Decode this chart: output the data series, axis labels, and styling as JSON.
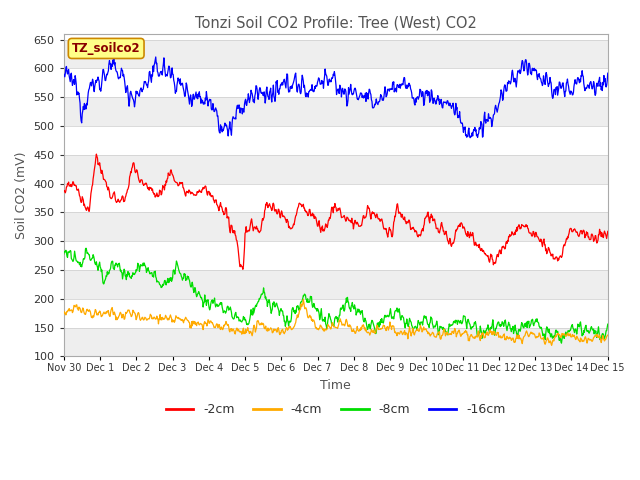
{
  "title": "Tonzi Soil CO2 Profile: Tree (West) CO2",
  "ylabel": "Soil CO2 (mV)",
  "xlabel": "Time",
  "legend_label": "TZ_soilco2",
  "ylim": [
    100,
    660
  ],
  "yticks": [
    100,
    150,
    200,
    250,
    300,
    350,
    400,
    450,
    500,
    550,
    600,
    650
  ],
  "series_labels": [
    "-2cm",
    "-4cm",
    "-8cm",
    "-16cm"
  ],
  "series_colors": [
    "#ff0000",
    "#ffaa00",
    "#00dd00",
    "#0000ff"
  ],
  "bg_color": "#ffffff",
  "n_points": 1000,
  "x_start": 0,
  "x_end": 15.0,
  "xtick_positions": [
    0,
    1,
    2,
    3,
    4,
    5,
    6,
    7,
    8,
    9,
    10,
    11,
    12,
    13,
    14,
    15
  ],
  "xtick_labels": [
    "Nov 30",
    "Dec 1",
    "Dec 2",
    "Dec 3",
    "Dec 4",
    "Dec 5",
    "Dec 6",
    "Dec 7",
    "Dec 8",
    "Dec 9",
    "Dec 10",
    "Dec 11",
    "Dec 12",
    "Dec 13",
    "Dec 14",
    "Dec 15"
  ]
}
